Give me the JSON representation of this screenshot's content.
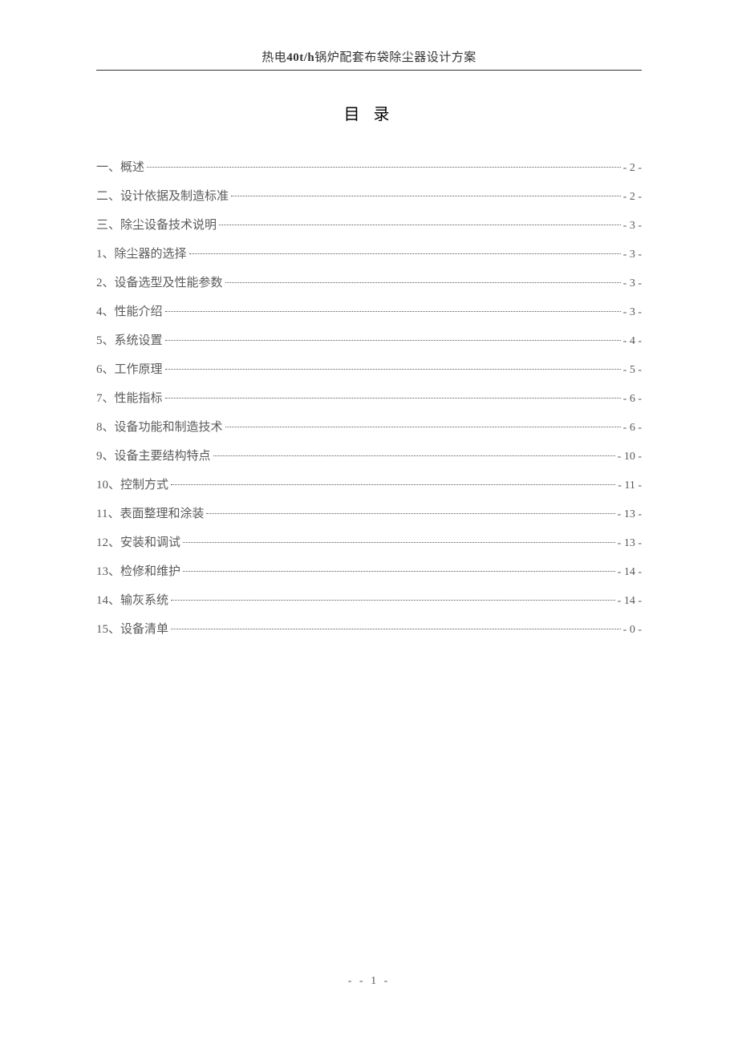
{
  "header": {
    "prefix": "热电",
    "bold": "40t/h",
    "suffix": "锅炉配套布袋除尘器设计方案"
  },
  "toc": {
    "title": "目 录",
    "items": [
      {
        "label": "一、概述",
        "page": "- 2 -"
      },
      {
        "label": "二、设计依据及制造标准",
        "page": "- 2 -"
      },
      {
        "label": "三、除尘设备技术说明",
        "page": "- 3 -"
      },
      {
        "label": "1、除尘器的选择",
        "page": "- 3 -"
      },
      {
        "label": "2、设备选型及性能参数",
        "page": "- 3 -"
      },
      {
        "label": "4、性能介绍",
        "page": "- 3 -"
      },
      {
        "label": "5、系统设置",
        "page": "- 4 -"
      },
      {
        "label": "6、工作原理",
        "page": "- 5 -"
      },
      {
        "label": "7、性能指标",
        "page": "- 6 -"
      },
      {
        "label": "8、设备功能和制造技术",
        "page": "- 6 -"
      },
      {
        "label": "9、设备主要结构特点",
        "page": "- 10 -"
      },
      {
        "label": "10、控制方式",
        "page": "- 11 -"
      },
      {
        "label": "11、表面整理和涂装",
        "page": "- 13 -"
      },
      {
        "label": "12、安装和调试",
        "page": "- 13 -"
      },
      {
        "label": "13、检修和维护",
        "page": "- 14 -"
      },
      {
        "label": "14、输灰系统",
        "page": "- 14 -"
      },
      {
        "label": "15、设备清单",
        "page": "- 0 -"
      }
    ]
  },
  "footer": {
    "page_number": "- - 1 -"
  },
  "colors": {
    "text_primary": "#333333",
    "text_secondary": "#5a5a5a",
    "background": "#ffffff"
  },
  "typography": {
    "header_fontsize": 15,
    "title_fontsize": 20,
    "item_fontsize": 15,
    "footer_fontsize": 14
  }
}
